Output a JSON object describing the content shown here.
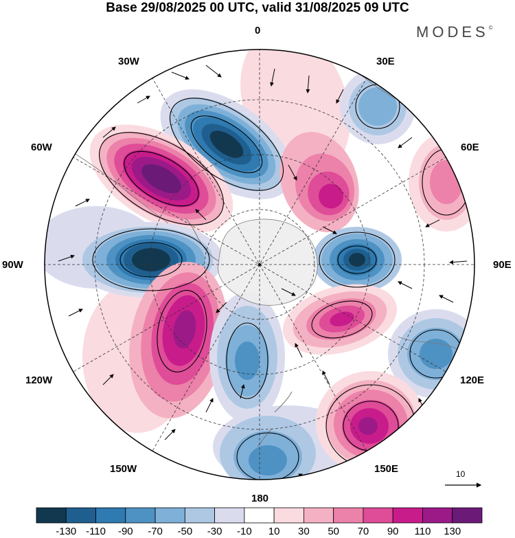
{
  "title": "Base 29/08/2025 00 UTC, valid 31/08/2025 09 UTC",
  "brand": "MODES",
  "brand_mark": "©",
  "longitude_labels": {
    "l0": "0",
    "l30e": "30E",
    "l60e": "60E",
    "l90e": "90E",
    "l120e": "120E",
    "l150e": "150E",
    "l180": "180",
    "l150w": "150W",
    "l120w": "120W",
    "l90w": "90W",
    "l60w": "60W",
    "l30w": "30W"
  },
  "vector_scale": {
    "label": "10"
  },
  "colorbar": {
    "colors": [
      "#12384f",
      "#1f5f8f",
      "#2f7ab0",
      "#4e92c4",
      "#7fb0d8",
      "#aec8e4",
      "#dadcee",
      "#ffffff",
      "#fadbe0",
      "#f4b1c3",
      "#ec81a9",
      "#df4c98",
      "#c81c8b",
      "#9c1a88",
      "#6b1a78"
    ],
    "ticks": [
      "-130",
      "-110",
      "-90",
      "-70",
      "-50",
      "-30",
      "-10",
      "10",
      "30",
      "50",
      "70",
      "90",
      "110",
      "130"
    ]
  },
  "anomaly_centers": [
    {
      "id": "neg-atlantic",
      "sign": "negative",
      "value": -130
    },
    {
      "id": "neg-indian-30e",
      "sign": "negative",
      "value": -50
    },
    {
      "id": "pos-60w",
      "sign": "positive",
      "value": 130
    },
    {
      "id": "pos-20e",
      "sign": "positive",
      "value": 90
    },
    {
      "id": "pos-60e",
      "sign": "positive",
      "value": 50
    },
    {
      "id": "neg-90w",
      "sign": "negative",
      "value": -130
    },
    {
      "id": "neg-90e",
      "sign": "negative",
      "value": -130
    },
    {
      "id": "pos-115w",
      "sign": "positive",
      "value": 110
    },
    {
      "id": "pos-120e",
      "sign": "positive",
      "value": 90
    },
    {
      "id": "neg-165w",
      "sign": "negative",
      "value": -70
    },
    {
      "id": "neg-120e",
      "sign": "negative",
      "value": -70
    },
    {
      "id": "neg-180",
      "sign": "negative",
      "value": -70
    },
    {
      "id": "pos-150e",
      "sign": "positive",
      "value": 110
    }
  ]
}
